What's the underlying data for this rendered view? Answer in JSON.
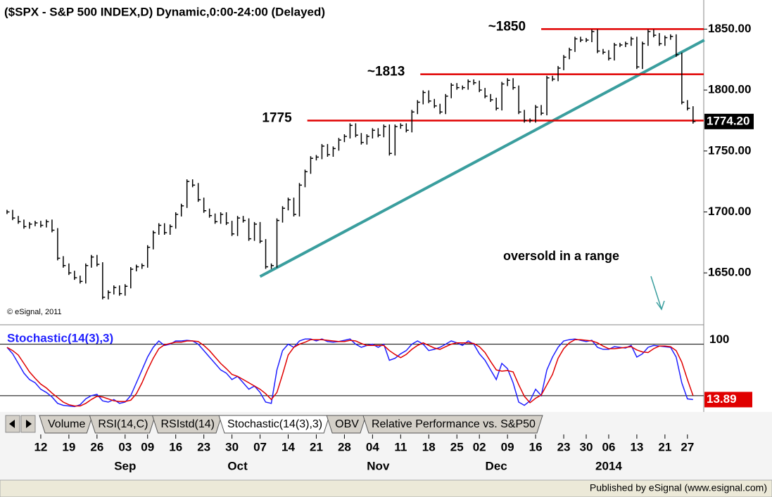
{
  "chart_data": [
    {
      "type": "stock",
      "title": "($SPX - S&P 500 INDEX,D) Dynamic,0:00-24:00 (Delayed)",
      "copyright": "© eSignal, 2011",
      "series": [
        {
          "name": "$SPX",
          "color": "#000000",
          "values": [
            1700,
            1695,
            1692,
            1688,
            1690,
            1691,
            1689,
            1692,
            1685,
            1662,
            1656,
            1650,
            1646,
            1643,
            1656,
            1663,
            1657,
            1630,
            1634,
            1638,
            1633,
            1639,
            1653,
            1655,
            1656,
            1671,
            1683,
            1689,
            1683,
            1688,
            1698,
            1705,
            1725,
            1722,
            1710,
            1701,
            1697,
            1692,
            1698,
            1691,
            1682,
            1695,
            1693,
            1678,
            1690,
            1676,
            1655,
            1656,
            1693,
            1703,
            1710,
            1698,
            1722,
            1733,
            1744,
            1745,
            1754,
            1747,
            1752,
            1759,
            1762,
            1771,
            1763,
            1757,
            1762,
            1767,
            1763,
            1770,
            1748,
            1770,
            1771,
            1767,
            1782,
            1790,
            1798,
            1791,
            1787,
            1782,
            1795,
            1804,
            1802,
            1802,
            1807,
            1806,
            1800,
            1795,
            1792,
            1785,
            1805,
            1808,
            1802,
            1782,
            1775,
            1775,
            1786,
            1781,
            1810,
            1809,
            1818,
            1827,
            1833,
            1842,
            1841,
            1841,
            1848,
            1832,
            1831,
            1826,
            1837,
            1837,
            1838,
            1842,
            1819,
            1838,
            1848,
            1845,
            1838,
            1843,
            1844,
            1829,
            1790,
            1785,
            1774.2
          ]
        }
      ],
      "last_label": "1774.20",
      "xlim": [
        -1.25,
        123.9
      ],
      "ylim": [
        1608,
        1871
      ],
      "yticks": [
        {
          "value": 1650,
          "label": "1650.00"
        },
        {
          "value": 1700,
          "label": "1700.00"
        },
        {
          "value": 1750,
          "label": "1750.00"
        },
        {
          "value": 1800,
          "label": "1800.00"
        },
        {
          "value": 1850,
          "label": "1850.00"
        }
      ],
      "xticks": [
        {
          "value": 6,
          "label": "12"
        },
        {
          "value": 11,
          "label": "19"
        },
        {
          "value": 16,
          "label": "26"
        },
        {
          "value": 21,
          "label": "03"
        },
        {
          "value": 25,
          "label": "09"
        },
        {
          "value": 30,
          "label": "16"
        },
        {
          "value": 35,
          "label": "23"
        },
        {
          "value": 40,
          "label": "30"
        },
        {
          "value": 45,
          "label": "07"
        },
        {
          "value": 50,
          "label": "14"
        },
        {
          "value": 55,
          "label": "21"
        },
        {
          "value": 60,
          "label": "28"
        },
        {
          "value": 65,
          "label": "04"
        },
        {
          "value": 70,
          "label": "11"
        },
        {
          "value": 75,
          "label": "18"
        },
        {
          "value": 80,
          "label": "25"
        },
        {
          "value": 84,
          "label": "02"
        },
        {
          "value": 89,
          "label": "09"
        },
        {
          "value": 94,
          "label": "16"
        },
        {
          "value": 99,
          "label": "23"
        },
        {
          "value": 103,
          "label": "30"
        },
        {
          "value": 107,
          "label": "06"
        },
        {
          "value": 112,
          "label": "13"
        },
        {
          "value": 117,
          "label": "21"
        },
        {
          "value": 121,
          "label": "27"
        }
      ],
      "month_ticks": [
        {
          "value": 21,
          "label": "Sep"
        },
        {
          "value": 41,
          "label": "Oct"
        },
        {
          "value": 66,
          "label": "Nov"
        },
        {
          "value": 87,
          "label": "Dec"
        },
        {
          "value": 107,
          "label": "2014"
        }
      ],
      "levels": [
        {
          "value": 1850,
          "start": 95,
          "label": "~1850",
          "color": "#e00000"
        },
        {
          "value": 1813,
          "start": 73.5,
          "label": "~1813",
          "color": "#e00000"
        },
        {
          "value": 1775,
          "start": 53.4,
          "label": "1775",
          "color": "#e00000"
        }
      ],
      "trendline": {
        "color": "#3a9e9e",
        "x": [
          45,
          124
        ],
        "y": [
          1647,
          1841
        ]
      },
      "annotation": "oversold in a range"
    },
    {
      "type": "line",
      "title": "Stochastic(14(3),3)",
      "xlim": [
        -1.25,
        123.9
      ],
      "ylim": [
        -2,
        129
      ],
      "yticks": [
        100
      ],
      "levels": [
        100,
        20
      ],
      "series": [
        {
          "name": "%K",
          "color": "#2020ff",
          "values": [
            95,
            85,
            70,
            55,
            45,
            40,
            30,
            25,
            18,
            8,
            5,
            4,
            3,
            6,
            15,
            20,
            22,
            12,
            10,
            14,
            8,
            10,
            20,
            40,
            60,
            80,
            95,
            105,
            98,
            100,
            105,
            105,
            106,
            105,
            100,
            90,
            80,
            70,
            60,
            55,
            45,
            50,
            40,
            30,
            35,
            25,
            10,
            8,
            60,
            90,
            100,
            95,
            105,
            108,
            108,
            105,
            108,
            104,
            103,
            104,
            106,
            108,
            100,
            95,
            98,
            100,
            95,
            100,
            75,
            78,
            85,
            90,
            100,
            105,
            100,
            90,
            92,
            95,
            100,
            105,
            102,
            98,
            105,
            100,
            85,
            75,
            60,
            45,
            70,
            62,
            40,
            10,
            5,
            12,
            30,
            20,
            60,
            80,
            95,
            105,
            107,
            108,
            106,
            104,
            106,
            95,
            92,
            92,
            96,
            95,
            94,
            98,
            80,
            85,
            95,
            98,
            97,
            96,
            95,
            80,
            40,
            15,
            13.89
          ]
        },
        {
          "name": "%D",
          "color": "#e00000",
          "values": [
            95,
            90,
            83,
            70,
            57,
            47,
            38,
            32,
            24,
            17,
            10,
            6,
            4,
            4,
            8,
            14,
            19,
            18,
            15,
            12,
            11,
            11,
            13,
            23,
            40,
            60,
            78,
            93,
            99,
            101,
            103,
            103,
            105,
            105,
            104,
            98,
            90,
            80,
            70,
            62,
            53,
            50,
            45,
            40,
            35,
            30,
            23,
            14,
            25,
            53,
            83,
            95,
            100,
            103,
            107,
            107,
            107,
            106,
            105,
            104,
            104,
            106,
            105,
            101,
            98,
            98,
            98,
            98,
            90,
            84,
            79,
            84,
            92,
            98,
            102,
            98,
            94,
            92,
            96,
            100,
            102,
            102,
            102,
            101,
            96,
            87,
            73,
            60,
            58,
            59,
            57,
            37,
            19,
            9,
            16,
            21,
            37,
            53,
            78,
            93,
            102,
            107,
            107,
            106,
            105,
            102,
            97,
            93,
            93,
            94,
            95,
            96,
            91,
            88,
            87,
            93,
            97,
            97,
            96,
            90,
            72,
            45,
            20
          ]
        }
      ]
    }
  ],
  "tabs": [
    "Volume",
    "RSI(14,C)",
    "RSIstd(14)",
    "Stochastic(14(3),3)",
    "OBV",
    "Relative Performance vs. S&P50"
  ],
  "active_tab": 3,
  "footer": "Published by eSignal (www.esignal.com)"
}
